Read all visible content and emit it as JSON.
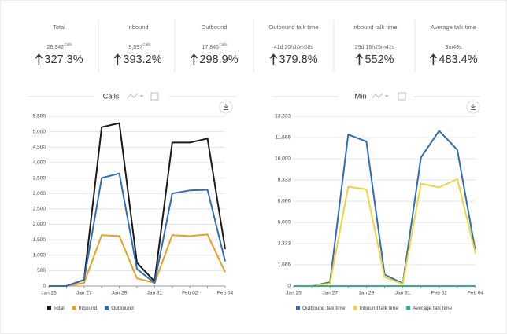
{
  "stats": [
    {
      "label": "Total",
      "value": "26,942",
      "unit": "Calls",
      "change": "327.3%"
    },
    {
      "label": "Inbound",
      "value": "9,097",
      "unit": "Calls",
      "change": "393.2%"
    },
    {
      "label": "Outbound",
      "value": "17,845",
      "unit": "Calls",
      "change": "298.9%"
    },
    {
      "label": "Outbound talk time",
      "value": "41d 20h10m58s",
      "change": "379.8%"
    },
    {
      "label": "Inbound talk time",
      "value": "29d 16h25m41s",
      "change": "552%"
    },
    {
      "label": "Average talk time",
      "value": "3m49s",
      "change": "483.4%"
    }
  ],
  "chart_data": [
    {
      "type": "line",
      "title": "Calls",
      "categories": [
        "Jan 25",
        null,
        "Jan 27",
        null,
        "Jan 29",
        null,
        "Jan 31",
        null,
        "Feb 02",
        null,
        "Feb 04"
      ],
      "ylim": [
        0,
        5500
      ],
      "yticks": [
        0,
        500,
        {
          "value": 1000,
          "label": "1,000"
        },
        {
          "value": 1500,
          "label": "1,500"
        },
        {
          "value": 2000,
          "label": "2,000"
        },
        {
          "value": 2500,
          "label": "2,500"
        },
        {
          "value": 3000,
          "label": "3,000"
        },
        {
          "value": 3500,
          "label": "3,500"
        },
        {
          "value": 4000,
          "label": "4,000"
        },
        {
          "value": 4500,
          "label": "4,500"
        },
        {
          "value": 5000,
          "label": "5,000"
        },
        {
          "value": 5500,
          "label": "5,500"
        }
      ],
      "grid": true,
      "series": [
        {
          "name": "Total",
          "color": "#1a1a1a",
          "values": [
            0,
            0,
            200,
            5150,
            5280,
            750,
            150,
            4650,
            4650,
            4780,
            1200
          ]
        },
        {
          "name": "Inbound",
          "color": "#e8a020",
          "values": [
            0,
            0,
            100,
            1650,
            1620,
            250,
            100,
            1650,
            1620,
            1670,
            450
          ]
        },
        {
          "name": "Outbound",
          "color": "#2f6db5",
          "values": [
            0,
            0,
            200,
            3500,
            3650,
            550,
            100,
            3000,
            3100,
            3120,
            800
          ]
        }
      ]
    },
    {
      "type": "line",
      "title": "Min",
      "categories": [
        "Jan 25",
        null,
        "Jan 27",
        null,
        "Jan 29",
        null,
        "Jan 31",
        null,
        "Feb 02",
        null,
        "Feb 04"
      ],
      "ylim": [
        0,
        13333
      ],
      "yticks": [
        0,
        {
          "value": 1666,
          "label": "1,666"
        },
        {
          "value": 3333,
          "label": "3,333"
        },
        {
          "value": 5000,
          "label": "5,000"
        },
        {
          "value": 6666,
          "label": "6,666"
        },
        {
          "value": 8333,
          "label": "8,333"
        },
        {
          "value": 10000,
          "label": "10,000"
        },
        {
          "value": 11666,
          "label": "11,666"
        },
        {
          "value": 13333,
          "label": "13,333"
        }
      ],
      "grid": true,
      "series": [
        {
          "name": "Outbound talk time",
          "color": "#2f6db5",
          "values": [
            0,
            0,
            300,
            11900,
            11350,
            900,
            200,
            10100,
            12200,
            10700,
            2700
          ]
        },
        {
          "name": "Inbound talk time",
          "color": "#f0d43a",
          "values": [
            0,
            0,
            200,
            7800,
            7600,
            700,
            150,
            8050,
            7750,
            8400,
            2550
          ]
        },
        {
          "name": "Average talk time",
          "color": "#2bb58e",
          "values": [
            0,
            0,
            0,
            0,
            0,
            0,
            0,
            0,
            0,
            0,
            0
          ]
        }
      ]
    }
  ]
}
